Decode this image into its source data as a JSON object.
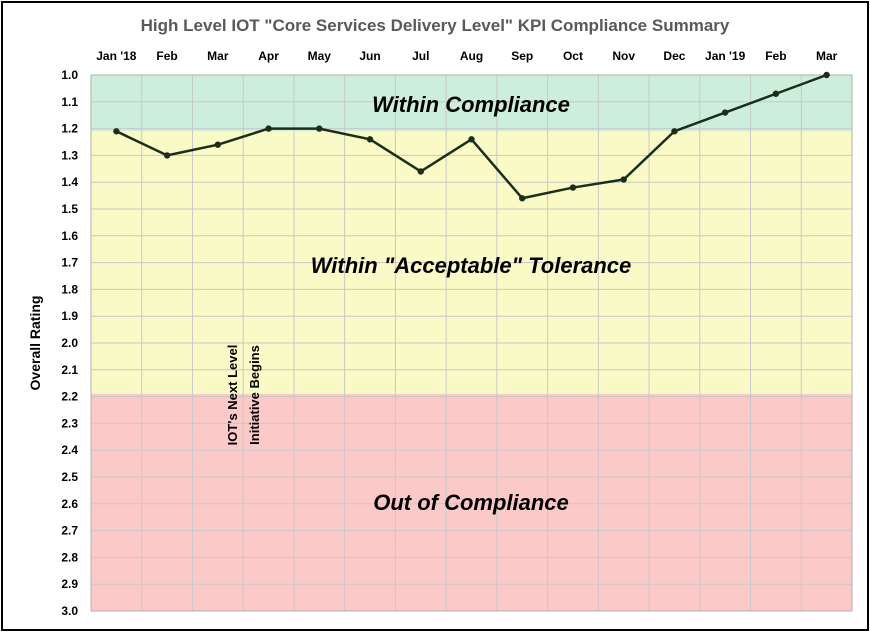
{
  "chart_data": {
    "type": "line",
    "title": "High Level IOT \"Core Services Delivery Level\" KPI Compliance Summary",
    "xlabel": "",
    "ylabel": "Overall Rating",
    "categories": [
      "Jan '18",
      "Feb",
      "Mar",
      "Apr",
      "May",
      "Jun",
      "Jul",
      "Aug",
      "Sep",
      "Oct",
      "Nov",
      "Dec",
      "Jan '19",
      "Feb",
      "Mar"
    ],
    "y_ticks": [
      "1.0",
      "1.1",
      "1.2",
      "1.3",
      "1.4",
      "1.5",
      "1.6",
      "1.7",
      "1.8",
      "1.9",
      "2.0",
      "2.1",
      "2.2",
      "2.3",
      "2.4",
      "2.5",
      "2.6",
      "2.7",
      "2.8",
      "2.9",
      "3.0"
    ],
    "ylim": [
      1.0,
      3.0
    ],
    "y_inverted": true,
    "x_axis_position": "top",
    "grid": true,
    "series": [
      {
        "values": [
          1.21,
          1.3,
          1.26,
          1.2,
          1.2,
          1.24,
          1.36,
          1.24,
          1.46,
          1.42,
          1.39,
          1.21,
          1.14,
          1.07,
          1.0
        ],
        "color": "#1a2e1a"
      }
    ],
    "zones": [
      {
        "label": "Within Compliance",
        "from": 1.0,
        "to": 1.21,
        "color": "#cdeedb"
      },
      {
        "label": "Within \"Acceptable\" Tolerance",
        "from": 1.21,
        "to": 2.19,
        "color": "#fafac6"
      },
      {
        "label": "Out of Compliance",
        "from": 2.19,
        "to": 3.0,
        "color": "#fcc9c9"
      }
    ],
    "annotations": [
      {
        "text_lines": [
          "IOT's Next Level",
          "Initiative Begins"
        ],
        "category_index": 3,
        "orientation": "vertical"
      }
    ]
  }
}
